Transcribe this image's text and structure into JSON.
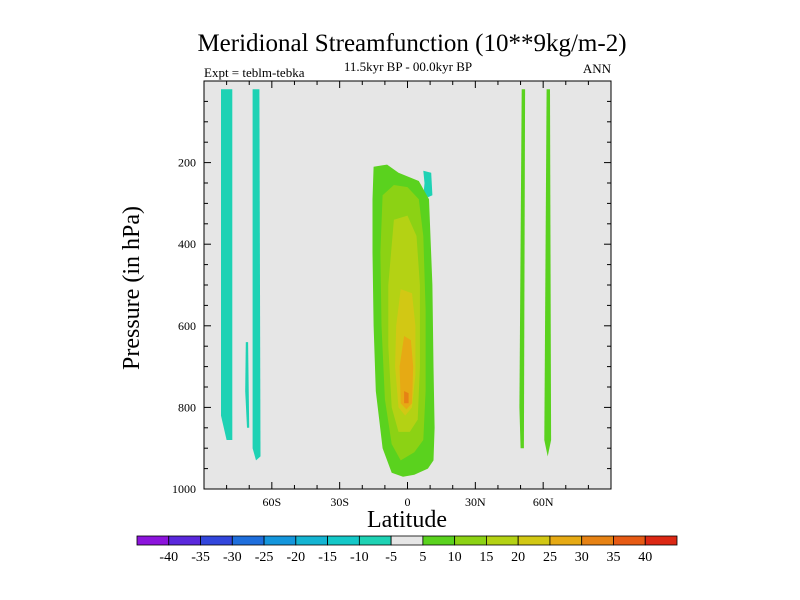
{
  "chart_data": {
    "type": "contour",
    "title": "Meridional Streamfunction (10**9kg/m-2)",
    "subtitle_center": "11.5kyr BP - 00.0kyr BP",
    "subtitle_left": "Expt = teblm-tebka",
    "subtitle_right": "ANN",
    "xlabel": "Latitude",
    "ylabel": "Pressure (in hPa)",
    "xlim": [
      -90,
      90
    ],
    "ylim": [
      1000,
      0
    ],
    "x_ticks": [
      {
        "value": -60,
        "label": "60S"
      },
      {
        "value": -30,
        "label": "30S"
      },
      {
        "value": 0,
        "label": "0"
      },
      {
        "value": 30,
        "label": "30N"
      },
      {
        "value": 60,
        "label": "60N"
      }
    ],
    "y_ticks": [
      {
        "value": 200,
        "label": "200"
      },
      {
        "value": 400,
        "label": "400"
      },
      {
        "value": 600,
        "label": "600"
      },
      {
        "value": 800,
        "label": "800"
      },
      {
        "value": 1000,
        "label": "1000"
      }
    ],
    "background_color": "#e6e6e6",
    "colorbar": {
      "labels": [
        "-40",
        "-35",
        "-30",
        "-25",
        "-20",
        "-15",
        "-10",
        "-5",
        "5",
        "10",
        "15",
        "20",
        "25",
        "30",
        "35",
        "40"
      ],
      "colors": [
        "#8c14dc",
        "#5a28dc",
        "#3246dc",
        "#1e6edc",
        "#1496dc",
        "#14b4d2",
        "#14c8c8",
        "#1ed2b4",
        "#e6e6e6",
        "#5ad21e",
        "#8cd214",
        "#b4d214",
        "#d2c814",
        "#e6aa14",
        "#e68214",
        "#e65a14",
        "#dc2814"
      ]
    },
    "regions": [
      {
        "name": "sh-polar-cell",
        "color": "#1ed2b4",
        "points": [
          [
            -82.5,
            20
          ],
          [
            -77.5,
            20
          ],
          [
            -77.5,
            880
          ],
          [
            -80,
            880
          ],
          [
            -82.5,
            820
          ]
        ]
      },
      {
        "name": "sh-thin-strip",
        "color": "#1ed2b4",
        "points": [
          [
            -71.5,
            640
          ],
          [
            -70.5,
            640
          ],
          [
            -70,
            850
          ],
          [
            -71,
            850
          ],
          [
            -71.8,
            760
          ]
        ]
      },
      {
        "name": "sh-midlat-cell",
        "color": "#1ed2b4",
        "points": [
          [
            -68.5,
            20
          ],
          [
            -65.5,
            20
          ],
          [
            -65,
            920
          ],
          [
            -67,
            930
          ],
          [
            -68.5,
            900
          ]
        ]
      },
      {
        "name": "upper-negative",
        "color": "#1ed2b4",
        "points": [
          [
            7,
            220
          ],
          [
            10.5,
            225
          ],
          [
            11,
            280
          ],
          [
            9,
            285
          ],
          [
            7.2,
            270
          ],
          [
            7.5,
            250
          ]
        ]
      },
      {
        "name": "tropical-5",
        "color": "#5ad21e",
        "points": [
          [
            -15,
            210
          ],
          [
            -9,
            205
          ],
          [
            -4,
            225
          ],
          [
            5,
            245
          ],
          [
            9.5,
            290
          ],
          [
            11,
            500
          ],
          [
            11.5,
            700
          ],
          [
            12,
            850
          ],
          [
            11.5,
            930
          ],
          [
            9,
            950
          ],
          [
            3,
            965
          ],
          [
            -2,
            970
          ],
          [
            -7,
            960
          ],
          [
            -11,
            900
          ],
          [
            -14,
            760
          ],
          [
            -15,
            600
          ],
          [
            -15.5,
            420
          ],
          [
            -15.5,
            290
          ]
        ]
      },
      {
        "name": "tropical-10",
        "color": "#8cd214",
        "points": [
          [
            -11,
            280
          ],
          [
            -6,
            255
          ],
          [
            0,
            260
          ],
          [
            5,
            290
          ],
          [
            7,
            380
          ],
          [
            8,
            560
          ],
          [
            8,
            760
          ],
          [
            7,
            880
          ],
          [
            3,
            910
          ],
          [
            -3,
            930
          ],
          [
            -7,
            890
          ],
          [
            -10,
            780
          ],
          [
            -11.5,
            600
          ],
          [
            -12,
            420
          ]
        ]
      },
      {
        "name": "tropical-15",
        "color": "#b4d214",
        "points": [
          [
            -6,
            340
          ],
          [
            0,
            330
          ],
          [
            4,
            380
          ],
          [
            5.5,
            500
          ],
          [
            5.5,
            700
          ],
          [
            4.5,
            830
          ],
          [
            1,
            860
          ],
          [
            -4,
            860
          ],
          [
            -7,
            800
          ],
          [
            -8.5,
            650
          ],
          [
            -8.5,
            500
          ]
        ]
      },
      {
        "name": "tropical-20",
        "color": "#d2c814",
        "points": [
          [
            -3,
            510
          ],
          [
            2,
            520
          ],
          [
            3.5,
            600
          ],
          [
            3.5,
            720
          ],
          [
            2,
            800
          ],
          [
            -1,
            820
          ],
          [
            -4,
            800
          ],
          [
            -5.5,
            700
          ],
          [
            -5,
            600
          ]
        ]
      },
      {
        "name": "tropical-25",
        "color": "#e6aa14",
        "points": [
          [
            -1.5,
            625
          ],
          [
            1.5,
            635
          ],
          [
            2.5,
            700
          ],
          [
            2,
            790
          ],
          [
            -0.5,
            805
          ],
          [
            -3,
            790
          ],
          [
            -3.5,
            700
          ]
        ]
      },
      {
        "name": "tropical-30",
        "color": "#e68214",
        "points": [
          [
            -1.5,
            760
          ],
          [
            0.5,
            765
          ],
          [
            0.5,
            790
          ],
          [
            -1.5,
            790
          ]
        ]
      },
      {
        "name": "nh-midlat-cell-a",
        "color": "#5ad21e",
        "points": [
          [
            50.5,
            20
          ],
          [
            52,
            20
          ],
          [
            51.5,
            900
          ],
          [
            50,
            900
          ],
          [
            49.5,
            800
          ]
        ]
      },
      {
        "name": "nh-midlat-cell-b",
        "color": "#5ad21e",
        "points": [
          [
            61.5,
            20
          ],
          [
            63,
            20
          ],
          [
            63.5,
            880
          ],
          [
            62,
            920
          ],
          [
            60.5,
            880
          ]
        ]
      }
    ]
  }
}
